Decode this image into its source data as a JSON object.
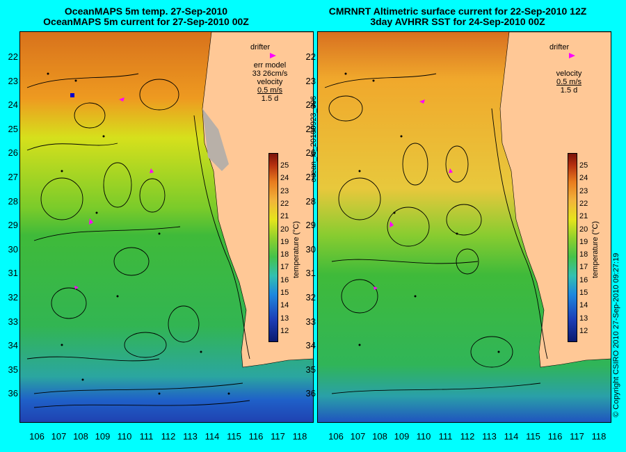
{
  "left_panel": {
    "title_line1": "OceanMAPS 5m temp. 27-Sep-2010",
    "title_line2": "OceanMAPS 5m current for 27-Sep-2010 00Z",
    "legend": {
      "drifter": "drifter",
      "err_model": "err model",
      "err_value": "33 26cm/s",
      "velocity": "velocity",
      "scale": "0.5 m/s",
      "days": "1.5 d"
    }
  },
  "right_panel": {
    "title_line1": "CMRNRT Altimetric surface current for 22-Sep-2010 12Z",
    "title_line2": "3day AVHRR SST for 24-Sep-2010 00Z",
    "legend": {
      "drifter": "drifter",
      "velocity": "velocity",
      "scale": "0.5 m/s",
      "days": "1.5 d"
    }
  },
  "latitudes": [
    "22",
    "23",
    "24",
    "25",
    "26",
    "27",
    "28",
    "29",
    "30",
    "31",
    "32",
    "33",
    "34",
    "35",
    "36"
  ],
  "longitudes": [
    "106",
    "107",
    "108",
    "109",
    "110",
    "111",
    "112",
    "113",
    "114",
    "115",
    "116",
    "117",
    "118"
  ],
  "colorbar": {
    "label": "temperature (°C)",
    "ticks": [
      "25",
      "24",
      "23",
      "22",
      "21",
      "20",
      "19",
      "18",
      "17",
      "16",
      "15",
      "14",
      "13",
      "12"
    ]
  },
  "vertical_id": "ocean_fc_20100923_096",
  "copyright": "© Copyright CSIRO 2010   27-Sep-2010 09:27:19",
  "colors": {
    "background": "#00ffff",
    "land": "#ffc896",
    "drifter": "#ff00ff"
  }
}
